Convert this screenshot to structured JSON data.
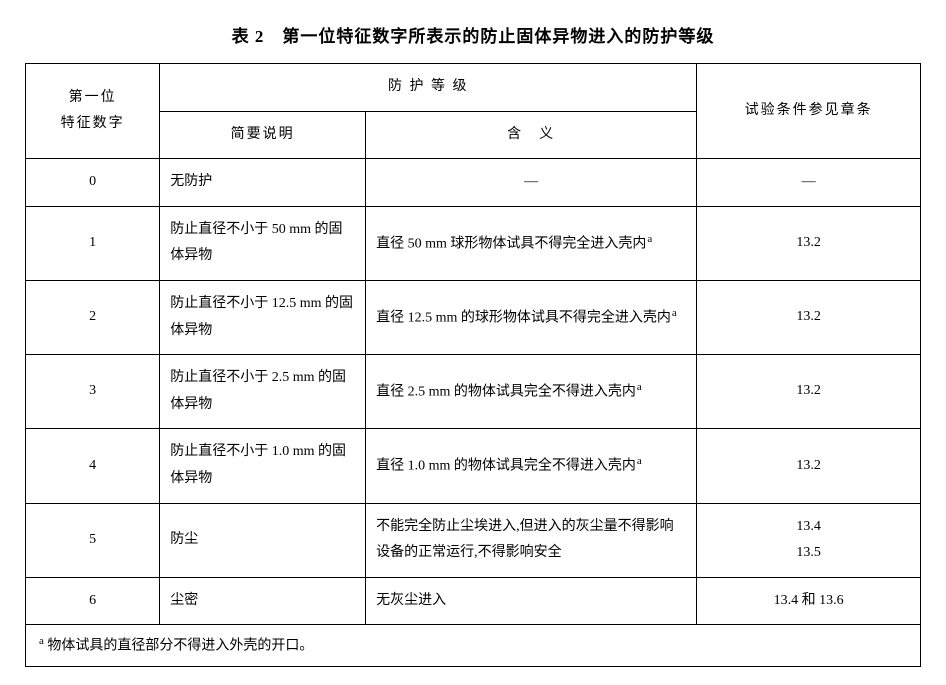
{
  "table": {
    "caption": "表 2　第一位特征数字所表示的防止固体异物进入的防护等级",
    "headers": {
      "digit_line1": "第一位",
      "digit_line2": "特征数字",
      "group": "防 护 等 级",
      "brief": "简要说明",
      "meaning": "含　义",
      "test": "试验条件参见章条"
    },
    "rows": [
      {
        "digit": "0",
        "brief": "无防护",
        "meaning": "—",
        "test": "—",
        "brief_align": "left",
        "meaning_align": "center",
        "mark": false
      },
      {
        "digit": "1",
        "brief": "防止直径不小于 50 mm 的固体异物",
        "meaning": "直径 50 mm 球形物体试具不得完全进入壳内",
        "test": "13.2",
        "brief_align": "left",
        "meaning_align": "left",
        "mark": true
      },
      {
        "digit": "2",
        "brief": "防止直径不小于 12.5 mm 的固体异物",
        "meaning": "直径 12.5 mm 的球形物体试具不得完全进入壳内",
        "test": "13.2",
        "brief_align": "left",
        "meaning_align": "left",
        "mark": true
      },
      {
        "digit": "3",
        "brief": "防止直径不小于 2.5 mm 的固体异物",
        "meaning": "直径 2.5 mm 的物体试具完全不得进入壳内",
        "test": "13.2",
        "brief_align": "left",
        "meaning_align": "left",
        "mark": true
      },
      {
        "digit": "4",
        "brief": "防止直径不小于 1.0 mm 的固体异物",
        "meaning": "直径 1.0 mm 的物体试具完全不得进入壳内",
        "test": "13.2",
        "brief_align": "left",
        "meaning_align": "left",
        "mark": true
      },
      {
        "digit": "5",
        "brief": "防尘",
        "meaning": "不能完全防止尘埃进入,但进入的灰尘量不得影响设备的正常运行,不得影响安全",
        "test": "13.4\n13.5",
        "brief_align": "left",
        "meaning_align": "left",
        "mark": false
      },
      {
        "digit": "6",
        "brief": "尘密",
        "meaning": "无灰尘进入",
        "test": "13.4 和 13.6",
        "brief_align": "left",
        "meaning_align": "left",
        "mark": false
      }
    ],
    "footnote_marker": "a",
    "footnote_text": "物体试具的直径部分不得进入外壳的开口。"
  },
  "style": {
    "background_color": "#ffffff",
    "text_color": "#000000",
    "border_color": "#000000",
    "caption_fontsize": 17,
    "cell_fontsize": 14,
    "line_height": 1.9,
    "column_widths_pct": [
      15,
      23,
      37,
      25
    ]
  }
}
